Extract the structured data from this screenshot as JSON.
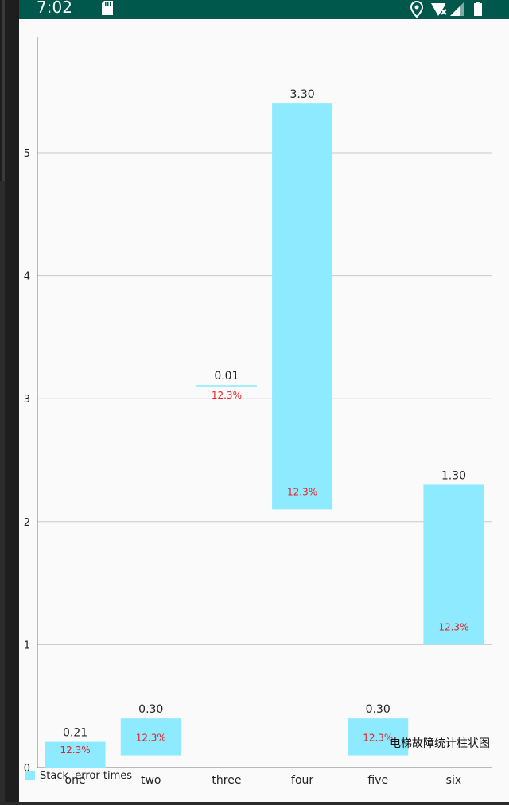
{
  "status_bar": {
    "time": "7:02",
    "icons": [
      "sd-card-icon",
      "location-icon",
      "wifi-no-internet-icon",
      "cell-signal-icon",
      "battery-icon"
    ]
  },
  "colors": {
    "status_bar_bg": "#00574b",
    "bar_fill": "#8eeaff",
    "value_label": "#222222",
    "inner_label": "#e8202a",
    "grid": "#c8c8c8",
    "axis": "#7a7a7a"
  },
  "chart_data": {
    "type": "bar",
    "subtype": "floating-stacked",
    "title": "",
    "description": "电梯故障统计柱状图",
    "xlabel": "",
    "ylabel": "",
    "categories": [
      "one",
      "two",
      "three",
      "four",
      "five",
      "six"
    ],
    "y_ticks": [
      "0",
      "1",
      "2",
      "3",
      "4",
      "5"
    ],
    "ylim": [
      0,
      5.95
    ],
    "grid": true,
    "legend": {
      "position": "bottom-left",
      "entries": [
        "Stack  error times"
      ]
    },
    "bars": [
      {
        "category": "one",
        "base": 0.0,
        "top": 0.21,
        "value_label": "0.21",
        "inner_label": "12.3%"
      },
      {
        "category": "two",
        "base": 0.1,
        "top": 0.4,
        "value_label": "0.30",
        "inner_label": "12.3%"
      },
      {
        "category": "three",
        "base": 3.1,
        "top": 3.11,
        "value_label": "0.01",
        "inner_label": "12.3%"
      },
      {
        "category": "four",
        "base": 2.1,
        "top": 5.4,
        "value_label": "3.30",
        "inner_label": "12.3%"
      },
      {
        "category": "five",
        "base": 0.1,
        "top": 0.4,
        "value_label": "0.30",
        "inner_label": "12.3%"
      },
      {
        "category": "six",
        "base": 1.0,
        "top": 2.3,
        "value_label": "1.30",
        "inner_label": "12.3%"
      }
    ]
  }
}
